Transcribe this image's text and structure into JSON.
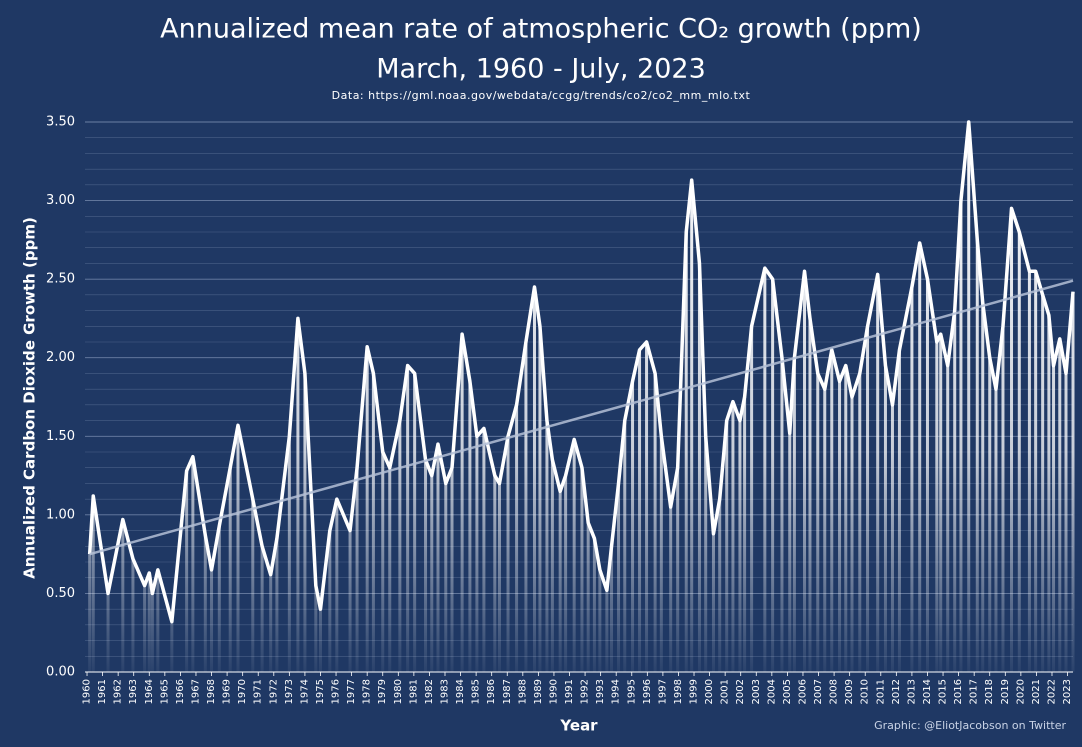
{
  "chart_data": {
    "type": "bar",
    "title": "Annualized mean rate of atmospheric CO₂ growth (ppm)",
    "subtitle": "March, 1960 - July, 2023",
    "source": "Data: https://gml.noaa.gov/webdata/ccgg/trends/co2/co2_mm_mlo.txt",
    "credit": "Graphic: @EliotJacobson on Twitter",
    "x_label": "Year",
    "y_label": "Annualized Cardbon Dioxide Growth (ppm)",
    "color": "#ffffff",
    "x": [
      1960.17,
      1960.4,
      1961.35,
      1962.3,
      1962.95,
      1963.7,
      1964.0,
      1964.2,
      1964.55,
      1965.45,
      1966.4,
      1966.8,
      1967.6,
      1968.0,
      1968.5,
      1969.2,
      1969.7,
      1970.65,
      1971.25,
      1971.8,
      1972.2,
      1973.0,
      1973.55,
      1974.0,
      1974.7,
      1975.0,
      1975.6,
      1976.05,
      1976.9,
      1977.35,
      1978.0,
      1978.4,
      1979.0,
      1979.45,
      1980.1,
      1980.6,
      1981.05,
      1981.75,
      1982.15,
      1982.55,
      1983.05,
      1983.45,
      1984.1,
      1984.6,
      1985.05,
      1985.5,
      1986.2,
      1986.5,
      1987.05,
      1987.6,
      1988.2,
      1988.75,
      1989.1,
      1989.55,
      1989.9,
      1990.4,
      1990.75,
      1991.3,
      1991.8,
      1992.2,
      1992.6,
      1992.95,
      1993.4,
      1993.7,
      1994.15,
      1994.55,
      1995.05,
      1995.5,
      1995.95,
      1996.5,
      1996.9,
      1997.5,
      1997.95,
      1998.5,
      1998.85,
      1999.35,
      1999.75,
      2000.25,
      2000.65,
      2001.1,
      2001.5,
      2001.95,
      2002.25,
      2002.7,
      2003.55,
      2004.05,
      2004.65,
      2005.15,
      2005.45,
      2006.1,
      2006.45,
      2006.95,
      2007.4,
      2007.85,
      2008.35,
      2008.75,
      2009.15,
      2009.65,
      2010.15,
      2010.8,
      2011.3,
      2011.75,
      2012.2,
      2013.0,
      2013.5,
      2014.0,
      2014.6,
      2014.85,
      2015.3,
      2015.75,
      2016.15,
      2016.65,
      2017.2,
      2017.55,
      2018.0,
      2018.4,
      2018.85,
      2019.4,
      2019.9,
      2020.55,
      2020.95,
      2021.4,
      2021.8,
      2022.1,
      2022.5,
      2022.9,
      2023.35
    ],
    "values": [
      0.75,
      1.12,
      0.5,
      0.97,
      0.72,
      0.55,
      0.63,
      0.5,
      0.65,
      0.32,
      1.28,
      1.37,
      0.87,
      0.65,
      0.93,
      1.3,
      1.57,
      1.1,
      0.8,
      0.62,
      0.85,
      1.5,
      2.25,
      1.9,
      0.55,
      0.4,
      0.9,
      1.1,
      0.9,
      1.3,
      2.07,
      1.9,
      1.4,
      1.3,
      1.6,
      1.95,
      1.9,
      1.35,
      1.25,
      1.45,
      1.2,
      1.3,
      2.15,
      1.85,
      1.5,
      1.55,
      1.25,
      1.2,
      1.5,
      1.7,
      2.1,
      2.45,
      2.2,
      1.6,
      1.35,
      1.15,
      1.25,
      1.48,
      1.3,
      0.95,
      0.85,
      0.65,
      0.52,
      0.8,
      1.2,
      1.6,
      1.85,
      2.05,
      2.1,
      1.9,
      1.5,
      1.05,
      1.3,
      2.8,
      3.13,
      2.6,
      1.5,
      0.88,
      1.1,
      1.6,
      1.72,
      1.6,
      1.75,
      2.2,
      2.57,
      2.5,
      2.0,
      1.52,
      2.0,
      2.55,
      2.25,
      1.9,
      1.8,
      2.05,
      1.85,
      1.95,
      1.75,
      1.9,
      2.2,
      2.53,
      1.95,
      1.7,
      2.05,
      2.45,
      2.73,
      2.5,
      2.1,
      2.15,
      1.95,
      2.3,
      3.0,
      3.5,
      2.75,
      2.35,
      2.0,
      1.8,
      2.2,
      2.95,
      2.8,
      2.55,
      2.55,
      2.4,
      2.27,
      1.95,
      2.12,
      1.9,
      2.42
    ],
    "trend": {
      "color": "#b4c0d6",
      "x": [
        1960.17,
        2023.35
      ],
      "values": [
        0.75,
        2.49
      ]
    },
    "xlim": [
      1959.87,
      2023.35
    ],
    "xticks": [
      1960,
      1961,
      1962,
      1963,
      1964,
      1965,
      1966,
      1967,
      1968,
      1969,
      1970,
      1971,
      1972,
      1973,
      1974,
      1975,
      1976,
      1977,
      1978,
      1979,
      1980,
      1981,
      1982,
      1983,
      1984,
      1985,
      1986,
      1987,
      1988,
      1989,
      1990,
      1991,
      1992,
      1993,
      1994,
      1995,
      1996,
      1997,
      1998,
      1999,
      2000,
      2001,
      2002,
      2003,
      2004,
      2005,
      2006,
      2007,
      2008,
      2009,
      2010,
      2011,
      2012,
      2013,
      2014,
      2015,
      2016,
      2017,
      2018,
      2019,
      2020,
      2021,
      2022,
      2023
    ],
    "ylim": [
      0,
      3.5
    ],
    "yticks": [
      {
        "value": 0,
        "label": "0.00"
      },
      {
        "value": 0.5,
        "label": "0.50"
      },
      {
        "value": 1,
        "label": "1.00"
      },
      {
        "value": 1.5,
        "label": "1.50"
      },
      {
        "value": 2,
        "label": "2.00"
      },
      {
        "value": 2.5,
        "label": "2.50"
      },
      {
        "value": 3,
        "label": "3.00"
      },
      {
        "value": 3.5,
        "label": "3.50"
      }
    ],
    "grid": true
  }
}
